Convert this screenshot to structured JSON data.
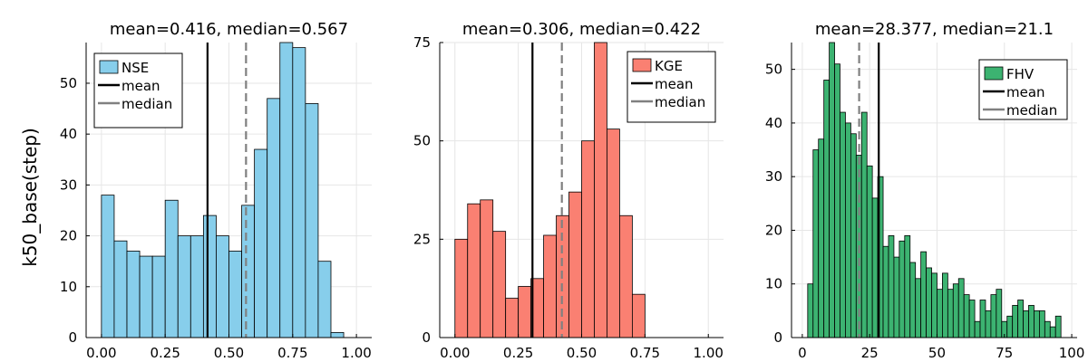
{
  "figure": {
    "ylabel": "k50_base(step)"
  },
  "chart_data": [
    {
      "type": "bar",
      "subtype": "histogram",
      "title": "mean=0.416, median=0.567",
      "series_name": "NSE",
      "color": "#87CEEB",
      "bin_width": 0.05,
      "bins_start": [
        0.0,
        0.05,
        0.1,
        0.15,
        0.2,
        0.25,
        0.3,
        0.35,
        0.4,
        0.45,
        0.5,
        0.55,
        0.6,
        0.65,
        0.7,
        0.75,
        0.8,
        0.85,
        0.9
      ],
      "counts": [
        28,
        19,
        17,
        16,
        16,
        27,
        20,
        20,
        24,
        20,
        17,
        26,
        37,
        47,
        58,
        57,
        46,
        15,
        1
      ],
      "mean": 0.416,
      "median": 0.567,
      "xlim": [
        -0.06,
        1.06
      ],
      "ylim": [
        0,
        58
      ],
      "xticks": [
        0.0,
        0.25,
        0.5,
        0.75,
        1.0
      ],
      "xtick_labels": [
        "0.00",
        "0.25",
        "0.50",
        "0.75",
        "1.00"
      ],
      "yticks": [
        0,
        10,
        20,
        30,
        40,
        50
      ],
      "ytick_labels": [
        "0",
        "10",
        "20",
        "30",
        "40",
        "50"
      ],
      "legend": {
        "position": "top-left",
        "entries": [
          "NSE",
          "mean",
          "median"
        ]
      }
    },
    {
      "type": "bar",
      "subtype": "histogram",
      "title": "mean=0.306, median=0.422",
      "series_name": "KGE",
      "color": "#FA8072",
      "bin_width": 0.05,
      "bins_start": [
        0.0,
        0.05,
        0.1,
        0.15,
        0.2,
        0.25,
        0.3,
        0.35,
        0.4,
        0.45,
        0.5,
        0.55,
        0.6,
        0.65,
        0.7
      ],
      "counts": [
        25,
        34,
        35,
        27,
        10,
        13,
        15,
        26,
        31,
        37,
        50,
        75,
        53,
        31,
        11
      ],
      "mean": 0.306,
      "median": 0.422,
      "xlim": [
        -0.06,
        1.06
      ],
      "ylim": [
        0,
        75
      ],
      "xticks": [
        0.0,
        0.25,
        0.5,
        0.75,
        1.0
      ],
      "xtick_labels": [
        "0.00",
        "0.25",
        "0.50",
        "0.75",
        "1.00"
      ],
      "yticks": [
        0,
        25,
        50,
        75
      ],
      "ytick_labels": [
        "0",
        "25",
        "50",
        "75"
      ],
      "legend": {
        "position": "top-right",
        "entries": [
          "KGE",
          "mean",
          "median"
        ]
      }
    },
    {
      "type": "bar",
      "subtype": "histogram",
      "title": "mean=28.377, median=21.1",
      "series_name": "FHV",
      "color": "#3CB371",
      "bin_width": 2,
      "bins_start": [
        2,
        4,
        6,
        8,
        10,
        12,
        14,
        16,
        18,
        20,
        22,
        24,
        26,
        28,
        30,
        32,
        34,
        36,
        38,
        40,
        42,
        44,
        46,
        48,
        50,
        52,
        54,
        56,
        58,
        60,
        62,
        64,
        66,
        68,
        70,
        72,
        74,
        76,
        78,
        80,
        82,
        84,
        86,
        88,
        90,
        92,
        94
      ],
      "counts": [
        10,
        35,
        37,
        48,
        55,
        51,
        42,
        40,
        38,
        34,
        42,
        32,
        26,
        30,
        17,
        19,
        15,
        18,
        19,
        14,
        11,
        16,
        13,
        12,
        9,
        12,
        9,
        10,
        11,
        8,
        7,
        3,
        7,
        5,
        8,
        9,
        3,
        4,
        6,
        7,
        5,
        6,
        5,
        5,
        3,
        2,
        4
      ],
      "mean": 28.377,
      "median": 21.1,
      "xlim": [
        -4,
        102
      ],
      "ylim": [
        0,
        55
      ],
      "xticks": [
        0,
        25,
        50,
        75,
        100
      ],
      "xtick_labels": [
        "0",
        "25",
        "50",
        "75",
        "100"
      ],
      "yticks": [
        0,
        10,
        20,
        30,
        40,
        50
      ],
      "ytick_labels": [
        "0",
        "10",
        "20",
        "30",
        "40",
        "50"
      ],
      "legend": {
        "position": "top-right",
        "entries": [
          "FHV",
          "mean",
          "median"
        ]
      }
    }
  ]
}
